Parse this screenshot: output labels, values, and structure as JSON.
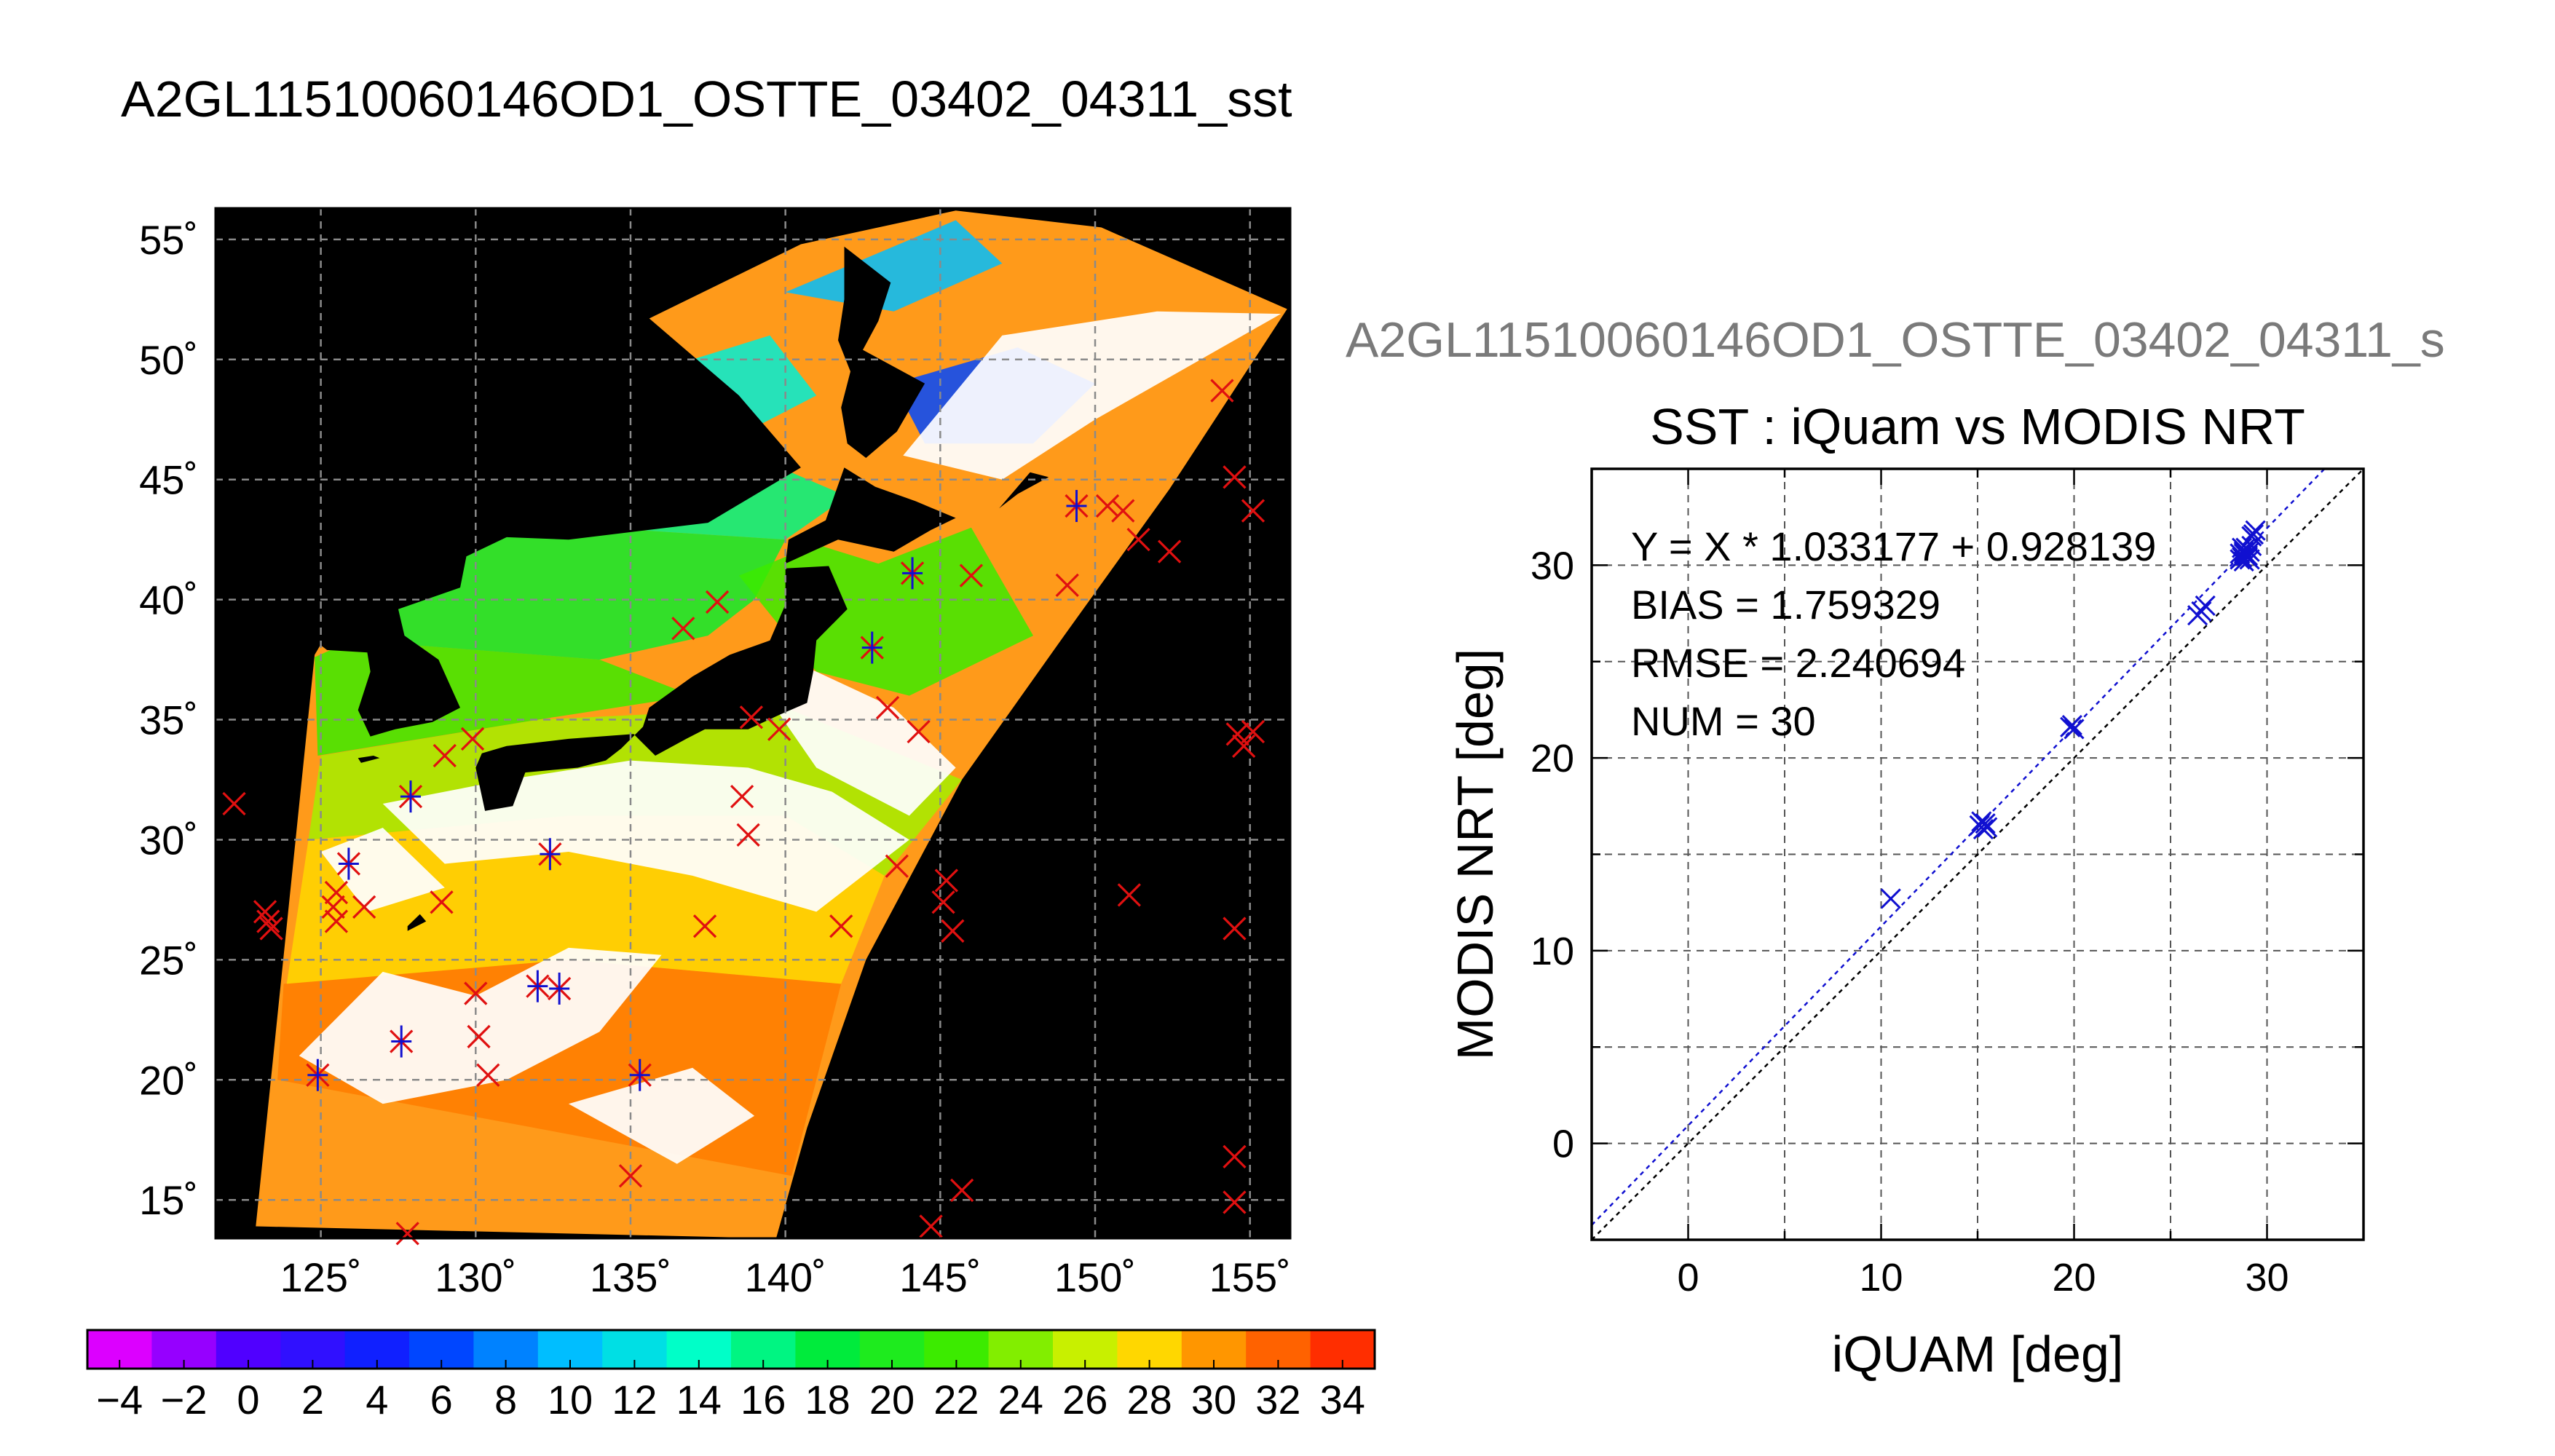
{
  "page": {
    "title": "A2GL11510060146OD1_OSTTE_03402_04311_sst",
    "second_title": "A2GL11510060146OD1_OSTTE_03402_04311_s"
  },
  "colors": {
    "land": "#000000",
    "no_data": "#000000",
    "iquam_buoy": "#e01010",
    "matchup": "#1010d0",
    "fit_line": "#1010d0",
    "identity_line": "#000000"
  },
  "chart_data": [
    {
      "type": "map",
      "lon_ticks": [
        "125˚",
        "130˚",
        "135˚",
        "140˚",
        "145˚",
        "150˚",
        "155˚"
      ],
      "lon_values": [
        125,
        130,
        135,
        140,
        145,
        150,
        155
      ],
      "lat_ticks": [
        "15˚",
        "20˚",
        "25˚",
        "30˚",
        "35˚",
        "40˚",
        "45˚",
        "50˚",
        "55˚"
      ],
      "lat_values": [
        15,
        20,
        25,
        30,
        35,
        40,
        45,
        50,
        55
      ],
      "xlim": [
        121.6,
        156.3
      ],
      "ylim": [
        13.4,
        56.3
      ],
      "grid": true,
      "colorbar": {
        "labels": [
          "−4",
          "−2",
          "0",
          "2",
          "4",
          "6",
          "8",
          "10",
          "12",
          "14",
          "16",
          "18",
          "20",
          "22",
          "24",
          "26",
          "28",
          "30",
          "32",
          "34"
        ],
        "range": [
          -5,
          35
        ]
      },
      "markers_iquam": [
        [
          122.2,
          31.5
        ],
        [
          123.2,
          27.0
        ],
        [
          123.3,
          26.6
        ],
        [
          123.4,
          26.3
        ],
        [
          125.5,
          27.8
        ],
        [
          125.4,
          27.2
        ],
        [
          125.5,
          26.6
        ],
        [
          126.4,
          27.2
        ],
        [
          128.9,
          27.4
        ],
        [
          130.0,
          23.6
        ],
        [
          130.1,
          21.8
        ],
        [
          130.4,
          20.2
        ],
        [
          135.0,
          16.0
        ],
        [
          127.8,
          13.6
        ],
        [
          129.0,
          33.5
        ],
        [
          129.9,
          34.2
        ],
        [
          136.7,
          38.8
        ],
        [
          137.8,
          39.9
        ],
        [
          138.9,
          35.1
        ],
        [
          139.8,
          34.6
        ],
        [
          138.6,
          31.8
        ],
        [
          138.8,
          30.2
        ],
        [
          137.4,
          26.4
        ],
        [
          141.8,
          26.4
        ],
        [
          143.6,
          28.9
        ],
        [
          145.2,
          28.3
        ],
        [
          145.1,
          27.4
        ],
        [
          145.4,
          26.2
        ],
        [
          144.7,
          13.9
        ],
        [
          145.7,
          15.4
        ],
        [
          144.3,
          34.5
        ],
        [
          143.3,
          35.5
        ],
        [
          146.0,
          41.0
        ],
        [
          149.1,
          40.6
        ],
        [
          150.4,
          43.9
        ],
        [
          150.9,
          43.7
        ],
        [
          151.4,
          42.5
        ],
        [
          152.4,
          42.0
        ],
        [
          151.1,
          27.7
        ],
        [
          154.1,
          48.7
        ],
        [
          154.5,
          45.1
        ],
        [
          155.1,
          43.7
        ],
        [
          154.6,
          34.4
        ],
        [
          154.8,
          33.9
        ],
        [
          155.1,
          34.5
        ],
        [
          154.5,
          26.3
        ],
        [
          154.5,
          16.8
        ],
        [
          154.5,
          14.9
        ],
        [
          124.9,
          20.2
        ],
        [
          127.6,
          21.6
        ],
        [
          127.9,
          31.8
        ],
        [
          125.9,
          29.0
        ],
        [
          132.4,
          29.4
        ],
        [
          132.0,
          23.9
        ],
        [
          132.7,
          23.8
        ],
        [
          135.3,
          20.2
        ],
        [
          142.8,
          38.0
        ],
        [
          144.1,
          41.1
        ],
        [
          149.4,
          43.9
        ]
      ],
      "markers_matchup": [
        [
          124.9,
          20.2
        ],
        [
          127.6,
          21.6
        ],
        [
          127.9,
          31.8
        ],
        [
          125.9,
          29.0
        ],
        [
          132.4,
          29.4
        ],
        [
          132.0,
          23.9
        ],
        [
          132.7,
          23.8
        ],
        [
          135.3,
          20.2
        ],
        [
          142.8,
          38.0
        ],
        [
          144.1,
          41.1
        ],
        [
          149.4,
          43.9
        ]
      ]
    },
    {
      "type": "scatter",
      "title": "SST : iQuam vs MODIS NRT",
      "xlabel": "iQUAM [deg]",
      "ylabel": "MODIS NRT [deg]",
      "xlim": [
        -5,
        35
      ],
      "ylim": [
        -5,
        35
      ],
      "xticks": [
        0,
        10,
        20,
        30
      ],
      "yticks": [
        0,
        10,
        20,
        30
      ],
      "grid": true,
      "annotations": [
        "Y = X * 1.033177 + 0.928139",
        "BIAS = 1.759329",
        "RMSE = 2.240694",
        "NUM = 30"
      ],
      "fit": {
        "slope": 1.033177,
        "intercept": 0.928139
      },
      "points": [
        [
          10.5,
          12.7
        ],
        [
          15.1,
          16.5
        ],
        [
          15.3,
          16.3
        ],
        [
          15.4,
          16.6
        ],
        [
          15.2,
          16.7
        ],
        [
          15.5,
          16.4
        ],
        [
          19.8,
          21.6
        ],
        [
          19.9,
          21.7
        ],
        [
          20.0,
          21.5
        ],
        [
          26.4,
          27.4
        ],
        [
          26.8,
          27.9
        ],
        [
          26.6,
          27.6
        ],
        [
          28.6,
          30.3
        ],
        [
          28.8,
          30.6
        ],
        [
          28.9,
          30.5
        ],
        [
          29.0,
          30.8
        ],
        [
          28.7,
          30.4
        ],
        [
          29.1,
          30.7
        ],
        [
          28.8,
          30.2
        ],
        [
          29.0,
          30.5
        ],
        [
          28.9,
          30.9
        ],
        [
          29.2,
          31.0
        ],
        [
          28.6,
          30.6
        ],
        [
          29.0,
          30.4
        ],
        [
          29.3,
          31.6
        ],
        [
          29.4,
          31.8
        ],
        [
          29.2,
          31.5
        ],
        [
          28.7,
          30.9
        ],
        [
          29.1,
          30.3
        ],
        [
          28.8,
          30.7
        ]
      ]
    }
  ]
}
